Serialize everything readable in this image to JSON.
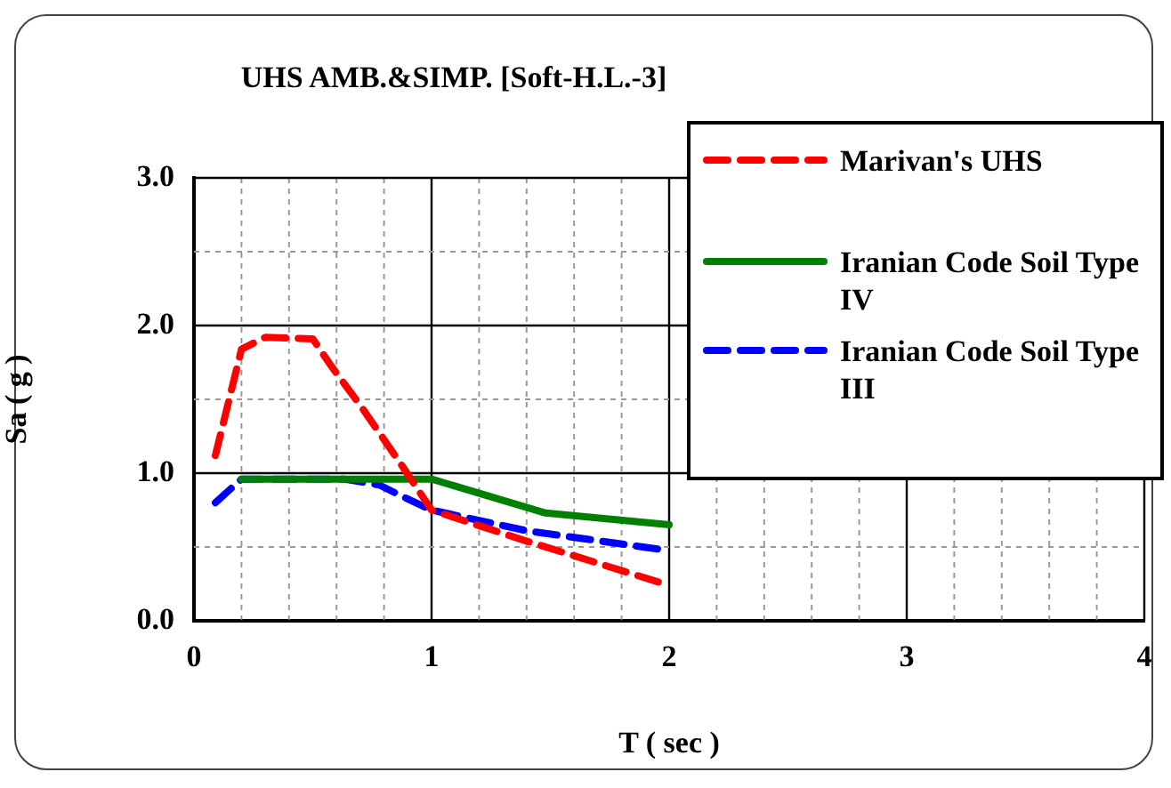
{
  "chart_data": {
    "type": "line",
    "title": "UHS AMB.&SIMP. [Soft-H.L.-3]",
    "xlabel": "T ( sec )",
    "ylabel": "Sa ( g )",
    "xlim": [
      0,
      4
    ],
    "xticks": [
      0,
      {
        "value": 0.2,
        "label": null
      },
      {
        "value": 0.4,
        "label": null
      },
      {
        "value": 0.6,
        "label": null
      },
      {
        "value": 0.8,
        "label": null
      },
      1,
      {
        "value": 1.2,
        "label": null
      },
      {
        "value": 1.4,
        "label": null
      },
      {
        "value": 1.6,
        "label": null
      },
      {
        "value": 1.8,
        "label": null
      },
      2,
      {
        "value": 2.2,
        "label": null
      },
      {
        "value": 2.4,
        "label": null
      },
      {
        "value": 2.6,
        "label": null
      },
      {
        "value": 2.8,
        "label": null
      },
      3,
      {
        "value": 3.2,
        "label": null
      },
      {
        "value": 3.4,
        "label": null
      },
      {
        "value": 3.6,
        "label": null
      },
      {
        "value": 3.8,
        "label": null
      },
      4
    ],
    "ylim": [
      0,
      3
    ],
    "yticks": [
      {
        "value": 0,
        "label": "0.0"
      },
      {
        "value": 0.5,
        "label": null
      },
      {
        "value": 1,
        "label": "1.0"
      },
      {
        "value": 1.5,
        "label": null
      },
      {
        "value": 2,
        "label": "2.0"
      },
      {
        "value": 2.5,
        "label": null
      },
      {
        "value": 3,
        "label": "3.0"
      }
    ],
    "grid": true,
    "legend": "top right",
    "marker": "none",
    "series": [
      {
        "name": "Marivan's UHS",
        "color": "#ff0000",
        "line_style": "dashed",
        "x": [
          0.09,
          0.2,
          0.3,
          0.5,
          0.58,
          0.7,
          0.88,
          1.0,
          1.38,
          2.0
        ],
        "values": [
          1.12,
          1.84,
          1.92,
          1.91,
          1.72,
          1.46,
          1.04,
          0.75,
          0.55,
          0.24
        ]
      },
      {
        "name": "Iranian Code Soil Type IV",
        "color": "#008000",
        "line_style": "solid",
        "x": [
          0.2,
          1.0,
          1.48,
          2.0
        ],
        "values": [
          0.96,
          0.96,
          0.73,
          0.65
        ]
      },
      {
        "name": "Iranian Code Soil Type III",
        "color": "#0000ff",
        "line_style": "dashed",
        "x": [
          0.09,
          0.2,
          0.63,
          0.78,
          0.88,
          1.0,
          1.4,
          1.98
        ],
        "values": [
          0.8,
          0.96,
          0.96,
          0.92,
          0.84,
          0.75,
          0.61,
          0.48
        ]
      }
    ]
  }
}
